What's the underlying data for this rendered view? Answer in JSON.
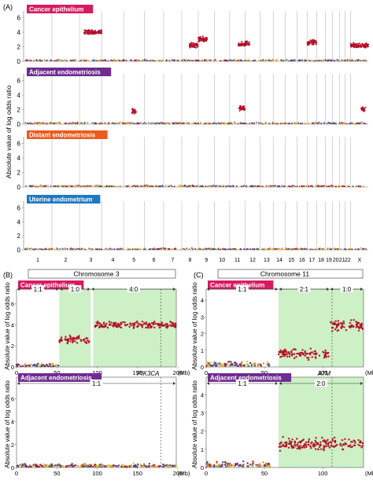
{
  "colors": {
    "red": "#b5122a",
    "orange": "#d98a2b",
    "yellow": "#d8c23a",
    "blue": "#3b4e9a",
    "purple": "#6f2c91",
    "pink": "#d81b60",
    "deep_orange": "#ec5a1c",
    "sky": "#1f78c1",
    "shade": "#cdf0c6",
    "grid": "#aaaaaa"
  },
  "chart_data": [
    {
      "id": "A",
      "type": "scatter",
      "panel_label": "(A)",
      "ylabel": "Absolute value of log odds ratio",
      "ylim": [
        0,
        6.5
      ],
      "yticks": [
        "0",
        "2",
        "4",
        "6"
      ],
      "chromosomes": [
        "1",
        "2",
        "3",
        "4",
        "5",
        "6",
        "7",
        "8",
        "9",
        "10",
        "11",
        "12",
        "13",
        "14",
        "15",
        "16",
        "17",
        "18",
        "19",
        "20",
        "21",
        "22",
        "X"
      ],
      "tracks": [
        {
          "title": "Cancer epithelium",
          "color": "#d81b60",
          "elevated": [
            {
              "chrom": "3",
              "from": 0.2,
              "to": 1.0,
              "level": 4.0
            },
            {
              "chrom": "8",
              "from": 0.45,
              "to": 1.0,
              "level": 2.2
            },
            {
              "chrom": "9",
              "from": 0.0,
              "to": 0.55,
              "level": 3.0
            },
            {
              "chrom": "11",
              "from": 0.55,
              "to": 1.0,
              "level": 2.3
            },
            {
              "chrom": "12",
              "from": 0.0,
              "to": 0.3,
              "level": 2.5
            },
            {
              "chrom": "17",
              "from": 0.0,
              "to": 1.0,
              "level": 2.6
            },
            {
              "chrom": "X",
              "from": 0.0,
              "to": 1.0,
              "level": 2.2
            }
          ]
        },
        {
          "title": "Adjacent endometriosis",
          "color": "#6f2c91",
          "elevated": [
            {
              "chrom": "5",
              "from": 0.4,
              "to": 0.6,
              "level": 1.8
            },
            {
              "chrom": "11",
              "from": 0.6,
              "to": 1.0,
              "level": 2.2
            },
            {
              "chrom": "X",
              "from": 0.6,
              "to": 0.85,
              "level": 2.0
            }
          ]
        },
        {
          "title": "Distant endometriosis",
          "color": "#ec5a1c",
          "elevated": []
        },
        {
          "title": "Uterine endometrium",
          "color": "#1f78c1",
          "elevated": []
        }
      ]
    },
    {
      "id": "B",
      "type": "scatter",
      "panel_label": "(B)",
      "header": "Chromosome 3",
      "ylabel": "Absolute value of log odds ratio",
      "xunit": "(Mb)",
      "xlim": [
        0,
        198
      ],
      "xticks": [
        "0",
        "50",
        "100",
        "150",
        "200"
      ],
      "ylim": [
        0,
        6.5
      ],
      "yticks": [
        "0",
        "2",
        "4",
        "6"
      ],
      "states": [
        {
          "label": "1:1",
          "from": 0,
          "to": 53
        },
        {
          "label": "1:0",
          "from": 53,
          "to": 92
        },
        {
          "label": "4:0",
          "from": 92,
          "to": 198
        }
      ],
      "gene": {
        "label": "PIK3CA",
        "position": 179
      },
      "tracks": [
        {
          "title": "Cancer epithelium",
          "color": "#d81b60",
          "shaded": [
            [
              53,
              92
            ],
            [
              95,
              198
            ]
          ],
          "segments": [
            {
              "from": 0,
              "to": 53,
              "level": 0.2
            },
            {
              "from": 53,
              "to": 90,
              "level": 2.6
            },
            {
              "from": 95,
              "to": 198,
              "level": 4.0
            }
          ]
        },
        {
          "title": "Adjacent endometriosis",
          "color": "#6f2c91",
          "state_label": "1:1",
          "shaded": [],
          "segments": [
            {
              "from": 0,
              "to": 198,
              "level": 0.15
            }
          ]
        }
      ]
    },
    {
      "id": "C",
      "type": "scatter",
      "panel_label": "(C)",
      "header": "Chromosome 11",
      "ylabel": "Absolute value of log odds ratio",
      "xunit": "(Mb)",
      "xlim": [
        0,
        135
      ],
      "xticks": [
        "0",
        "50",
        "100"
      ],
      "ylim": [
        0,
        4.1
      ],
      "yticks": [
        "0",
        "1",
        "2",
        "3",
        "4"
      ],
      "states": [
        {
          "label": "1:1",
          "from": 0,
          "to": 62
        },
        {
          "label": "2:1",
          "from": 62,
          "to": 106
        },
        {
          "label": "1:0",
          "from": 106,
          "to": 135
        }
      ],
      "gene": {
        "label": "ATM",
        "position": 108
      },
      "tracks": [
        {
          "title": "Cancer epithelium",
          "color": "#d81b60",
          "shaded": [
            [
              62,
              135
            ]
          ],
          "segments": [
            {
              "from": 0,
              "to": 55,
              "level": 0.2
            },
            {
              "from": 62,
              "to": 106,
              "level": 0.8
            },
            {
              "from": 106,
              "to": 135,
              "level": 2.5
            }
          ]
        },
        {
          "title": "Adjacent endometriosis",
          "color": "#6f2c91",
          "state_label": "2:0",
          "left_state": "1:1",
          "shaded": [
            [
              62,
              135
            ]
          ],
          "segments": [
            {
              "from": 0,
              "to": 55,
              "level": 0.2
            },
            {
              "from": 62,
              "to": 135,
              "level": 1.3
            }
          ]
        }
      ]
    }
  ]
}
